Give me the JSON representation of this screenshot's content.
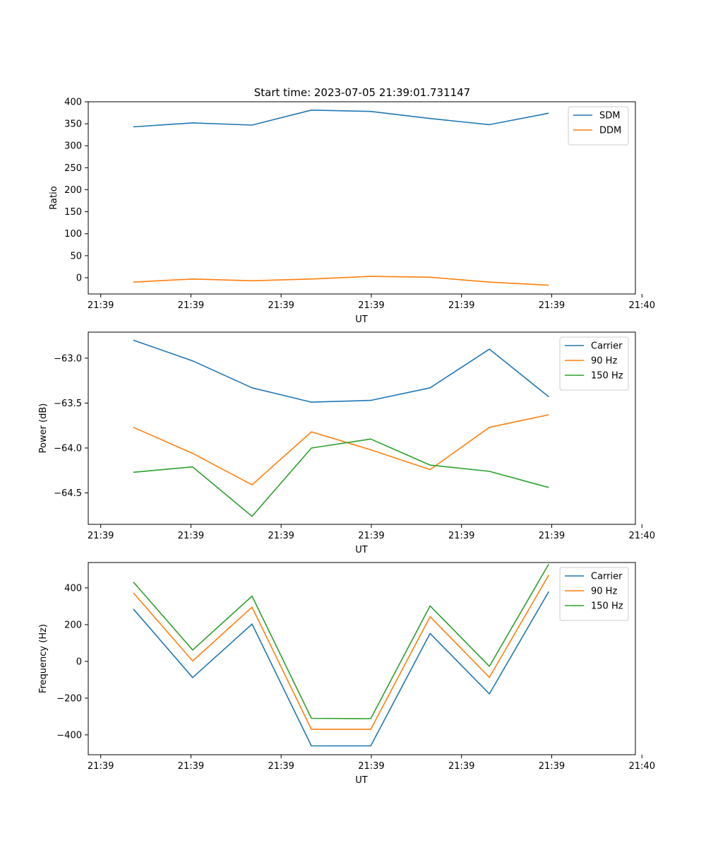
{
  "figure": {
    "title": "Start time: 2023-07-05 21:39:01.731147"
  },
  "chart_data": [
    {
      "type": "line",
      "xlabel": "UT",
      "ylabel": "Ratio",
      "x_tick_labels": [
        "21:39",
        "21:39",
        "21:39",
        "21:39",
        "21:39",
        "21:39",
        "21:40"
      ],
      "y_ticks": [
        0,
        50,
        100,
        150,
        200,
        250,
        300,
        350,
        400
      ],
      "ylim": [
        -37,
        400
      ],
      "legend_position": "top-right",
      "series": [
        {
          "name": "SDM",
          "color": "#1f77b4",
          "values": [
            343,
            352,
            347,
            381,
            378,
            362,
            348,
            374
          ]
        },
        {
          "name": "DDM",
          "color": "#ff7f0e",
          "values": [
            -10,
            -3,
            -7,
            -3,
            3,
            1,
            -10,
            -17
          ]
        }
      ]
    },
    {
      "type": "line",
      "xlabel": "UT",
      "ylabel": "Power (dB)",
      "x_tick_labels": [
        "21:39",
        "21:39",
        "21:39",
        "21:39",
        "21:39",
        "21:39",
        "21:40"
      ],
      "y_ticks": [
        -63.0,
        -63.5,
        -64.0,
        -64.5
      ],
      "ylim": [
        -64.85,
        -62.71
      ],
      "legend_position": "top-right",
      "series": [
        {
          "name": "Carrier",
          "color": "#1f77b4",
          "values": [
            -62.8,
            -63.03,
            -63.33,
            -63.49,
            -63.47,
            -63.33,
            -62.9,
            -63.43
          ]
        },
        {
          "name": "90 Hz",
          "color": "#ff7f0e",
          "values": [
            -63.77,
            -64.06,
            -64.41,
            -63.82,
            -64.02,
            -64.24,
            -63.77,
            -63.63
          ]
        },
        {
          "name": "150 Hz",
          "color": "#2ca02c",
          "values": [
            -64.27,
            -64.21,
            -64.76,
            -64.0,
            -63.9,
            -64.19,
            -64.26,
            -64.44
          ]
        }
      ]
    },
    {
      "type": "line",
      "xlabel": "UT",
      "ylabel": "Frequency (Hz)",
      "x_tick_labels": [
        "21:39",
        "21:39",
        "21:39",
        "21:39",
        "21:39",
        "21:39",
        "21:40"
      ],
      "y_ticks": [
        400,
        200,
        0,
        -200,
        -400
      ],
      "ylim": [
        -508,
        538
      ],
      "legend_position": "top-right",
      "series": [
        {
          "name": "Carrier",
          "color": "#1f77b4",
          "values": [
            285,
            -88,
            203,
            -460,
            -460,
            152,
            -177,
            380
          ]
        },
        {
          "name": "90 Hz",
          "color": "#ff7f0e",
          "values": [
            373,
            2,
            295,
            -370,
            -370,
            243,
            -87,
            470
          ]
        },
        {
          "name": "150 Hz",
          "color": "#2ca02c",
          "values": [
            432,
            62,
            355,
            -310,
            -312,
            302,
            -27,
            530
          ]
        }
      ]
    }
  ]
}
